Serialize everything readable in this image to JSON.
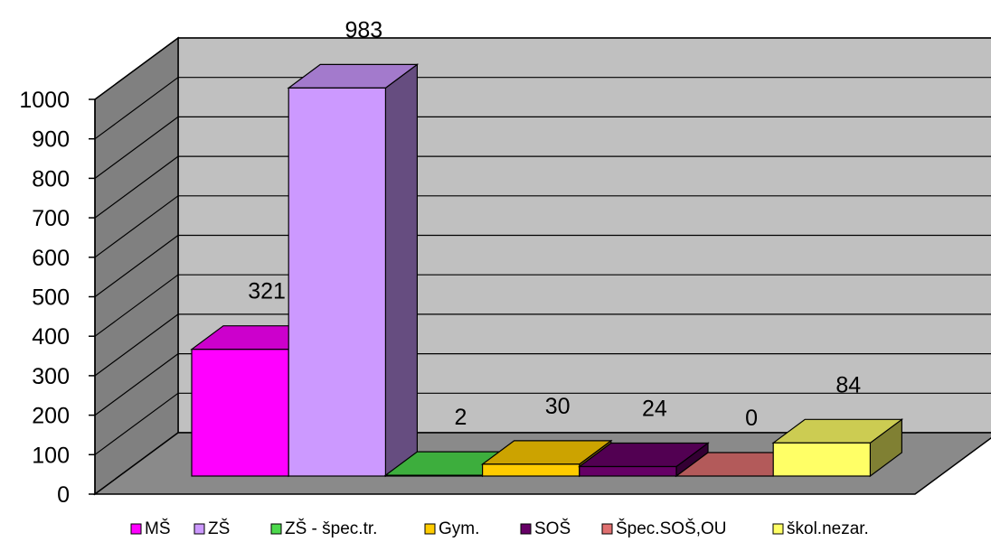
{
  "chart_data": {
    "type": "bar",
    "categories": [
      "MŠ",
      "ZŠ",
      "ZŠ - špec.tr.",
      "Gym.",
      "SOŠ",
      "Špec.SOŠ,OU",
      "škol.nezar."
    ],
    "values": [
      321,
      983,
      2,
      30,
      24,
      0,
      84
    ],
    "data_labels": [
      "321",
      "983",
      "2",
      "30",
      "24",
      "0",
      "84"
    ],
    "title": "",
    "xlabel": "",
    "ylabel": "",
    "ylim": [
      0,
      1000
    ],
    "yticks": [
      0,
      100,
      200,
      300,
      400,
      500,
      600,
      700,
      800,
      900,
      1000
    ],
    "grid": true,
    "legend": "bottom",
    "style": "3d-column",
    "colors": [
      "#ff00ff",
      "#cc99ff",
      "#4cd94c",
      "#ffcc00",
      "#660066",
      "#e07070",
      "#ffff66"
    ]
  }
}
